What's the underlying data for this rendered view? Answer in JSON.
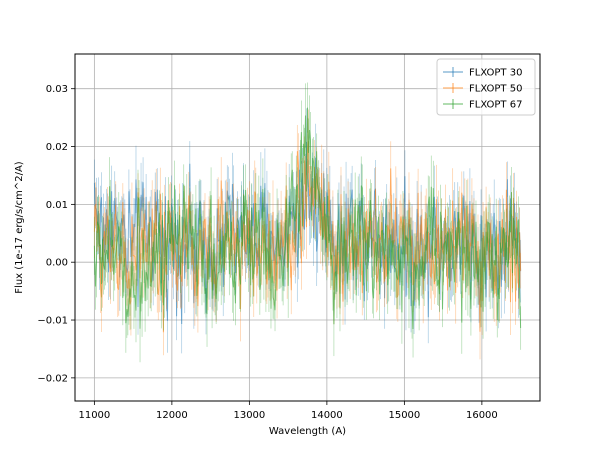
{
  "chart_data": {
    "type": "line",
    "title": "",
    "xlabel": "Wavelength (A)",
    "ylabel": "Flux (1e-17 erg/s/cm^2/A)",
    "xlim": [
      10750,
      16750
    ],
    "ylim": [
      -0.024,
      0.036
    ],
    "xticks": [
      11000,
      12000,
      13000,
      14000,
      15000,
      16000
    ],
    "xtick_labels": [
      "11000",
      "12000",
      "13000",
      "14000",
      "15000",
      "16000"
    ],
    "yticks": [
      -0.02,
      -0.01,
      0.0,
      0.01,
      0.02,
      0.03
    ],
    "ytick_labels": [
      "−0.02",
      "−0.01",
      "0.00",
      "0.01",
      "0.02",
      "0.03"
    ],
    "grid": true,
    "legend_position": "top-right",
    "x": [
      11000,
      11100,
      11200,
      11300,
      11400,
      11500,
      11600,
      11700,
      11800,
      11900,
      12000,
      12100,
      12200,
      12300,
      12400,
      12500,
      12600,
      12700,
      12800,
      12900,
      13000,
      13100,
      13200,
      13300,
      13400,
      13500,
      13600,
      13700,
      13750,
      13800,
      13900,
      14000,
      14100,
      14200,
      14300,
      14400,
      14500,
      14600,
      14700,
      14800,
      14900,
      15000,
      15100,
      15200,
      15300,
      15400,
      15500,
      15600,
      15700,
      15800,
      15900,
      16000,
      16100,
      16200,
      16300,
      16400,
      16500
    ],
    "series": [
      {
        "name": "FLXOPT 30",
        "color": "#1f77b4",
        "y": [
          0.012,
          0.004,
          0.008,
          0.006,
          0.003,
          0.002,
          0.006,
          0.004,
          0.005,
          0.001,
          0.006,
          0.003,
          0.004,
          0.002,
          0.003,
          0.004,
          0.002,
          0.006,
          0.005,
          0.004,
          0.006,
          0.003,
          0.005,
          0.004,
          0.003,
          0.006,
          0.008,
          0.012,
          0.014,
          0.011,
          0.012,
          0.009,
          0.002,
          0.004,
          0.005,
          0.006,
          0.005,
          0.006,
          0.004,
          0.006,
          0.003,
          0.004,
          0.002,
          0.004,
          0.003,
          0.005,
          0.002,
          0.004,
          0.003,
          0.002,
          0.004,
          0.001,
          0.003,
          0.002,
          0.004,
          0.003,
          0.004
        ],
        "noise": 0.005
      },
      {
        "name": "FLXOPT 50",
        "color": "#ff7f0e",
        "y": [
          0.004,
          0.003,
          0.005,
          0.004,
          0.001,
          0.0,
          0.004,
          0.003,
          0.002,
          0.0,
          0.004,
          0.002,
          0.003,
          0.001,
          0.002,
          0.003,
          0.001,
          0.004,
          0.003,
          0.003,
          0.004,
          0.002,
          0.004,
          0.002,
          0.001,
          0.004,
          0.007,
          0.011,
          0.013,
          0.012,
          0.011,
          0.008,
          0.001,
          0.002,
          0.003,
          0.004,
          0.003,
          0.004,
          0.002,
          0.004,
          0.002,
          0.003,
          0.001,
          0.003,
          0.002,
          0.004,
          0.001,
          0.003,
          0.002,
          0.001,
          0.003,
          0.0,
          0.002,
          0.001,
          0.003,
          0.002,
          0.003
        ],
        "noise": 0.005
      },
      {
        "name": "FLXOPT 67",
        "color": "#2ca02c",
        "y": [
          0.002,
          0.001,
          0.003,
          0.002,
          -0.002,
          -0.004,
          0.002,
          0.001,
          0.0,
          -0.002,
          0.003,
          0.001,
          0.002,
          0.0,
          0.001,
          0.002,
          0.0,
          0.003,
          0.002,
          0.002,
          0.003,
          0.001,
          0.003,
          0.001,
          0.0,
          0.004,
          0.009,
          0.018,
          0.024,
          0.016,
          0.009,
          0.006,
          0.0,
          0.001,
          0.002,
          0.003,
          0.002,
          0.003,
          0.001,
          0.003,
          0.0,
          0.002,
          -0.001,
          0.002,
          0.001,
          0.003,
          0.0,
          0.002,
          0.001,
          0.0,
          0.002,
          -0.001,
          0.001,
          0.0,
          0.002,
          0.001,
          0.002
        ],
        "noise": 0.005
      }
    ]
  }
}
